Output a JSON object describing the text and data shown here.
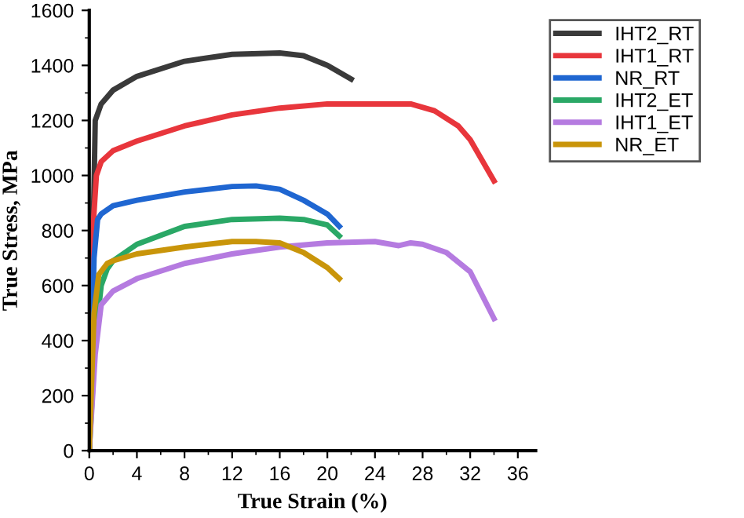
{
  "chart_data": {
    "type": "line",
    "xlabel": "True Strain (%)",
    "ylabel": "True Stress, MPa",
    "xlim": [
      0,
      37.5
    ],
    "ylim": [
      0,
      1600
    ],
    "xticks": [
      0,
      4,
      8,
      12,
      16,
      20,
      24,
      28,
      32,
      36
    ],
    "yticks": [
      0,
      200,
      400,
      600,
      800,
      1000,
      1200,
      1400,
      1600
    ],
    "legend": "top right",
    "grid": false,
    "marker": "none",
    "line_style": "solid",
    "series": [
      {
        "name": "IHT2_RT",
        "color": "#3a3a3a",
        "x": [
          0,
          0.5,
          1,
          2,
          4,
          8,
          12,
          16,
          18,
          20,
          22
        ],
        "values": [
          0,
          1200,
          1260,
          1310,
          1360,
          1415,
          1440,
          1445,
          1435,
          1400,
          1350
        ]
      },
      {
        "name": "IHT1_RT",
        "color": "#e8363c",
        "x": [
          0,
          0.3,
          0.6,
          1,
          2,
          4,
          8,
          12,
          16,
          20,
          24,
          27,
          29,
          31,
          32,
          34
        ],
        "values": [
          0,
          800,
          1000,
          1050,
          1090,
          1125,
          1180,
          1220,
          1245,
          1260,
          1260,
          1260,
          1235,
          1180,
          1130,
          980
        ]
      },
      {
        "name": "NR_RT",
        "color": "#1f66d1",
        "x": [
          0,
          0.4,
          0.7,
          1,
          2,
          4,
          8,
          12,
          14,
          16,
          18,
          20,
          21
        ],
        "values": [
          0,
          700,
          840,
          860,
          890,
          910,
          940,
          960,
          962,
          950,
          910,
          860,
          815
        ]
      },
      {
        "name": "IHT2_ET",
        "color": "#2aa866",
        "x": [
          0,
          0.5,
          1,
          1.5,
          2,
          4,
          8,
          12,
          16,
          18,
          20,
          21
        ],
        "values": [
          0,
          400,
          600,
          660,
          690,
          750,
          815,
          840,
          845,
          840,
          820,
          780
        ]
      },
      {
        "name": "IHT1_ET",
        "color": "#b57be0",
        "x": [
          0,
          0.5,
          1,
          2,
          4,
          8,
          12,
          16,
          20,
          24,
          26,
          27,
          28,
          30,
          32,
          34
        ],
        "values": [
          0,
          350,
          530,
          580,
          625,
          680,
          715,
          740,
          755,
          760,
          745,
          755,
          750,
          720,
          650,
          480
        ]
      },
      {
        "name": "NR_ET",
        "color": "#c9950a",
        "x": [
          0,
          0.4,
          0.8,
          1.5,
          2,
          4,
          8,
          12,
          14,
          16,
          18,
          20,
          21
        ],
        "values": [
          0,
          500,
          640,
          680,
          690,
          715,
          740,
          760,
          760,
          755,
          720,
          665,
          625
        ]
      }
    ]
  }
}
